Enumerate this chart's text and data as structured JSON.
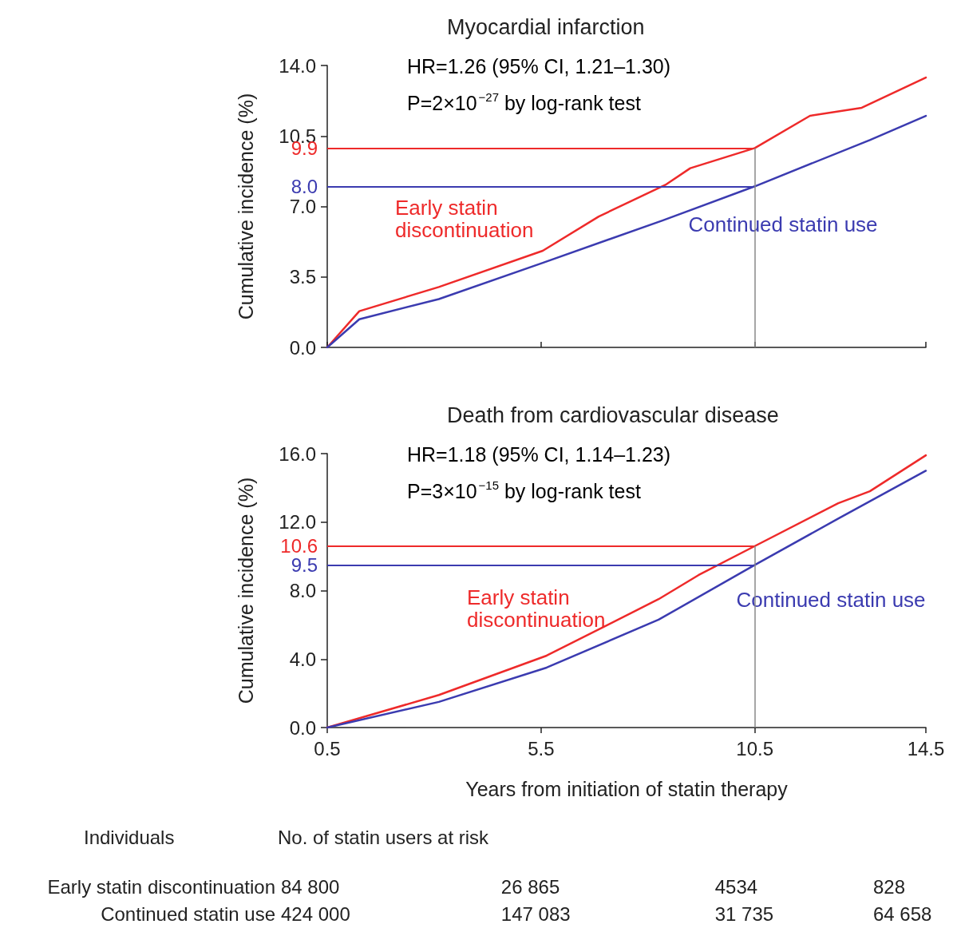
{
  "chart_data": [
    {
      "type": "line",
      "title": "Myocardial infarction",
      "ylabel": "Cumulative incidence (%)",
      "xlim": [
        0.5,
        14.5
      ],
      "xticks": [
        0.5,
        5.5,
        10.5,
        14.5
      ],
      "ylim": [
        0,
        14
      ],
      "yticks": [
        {
          "value": 0,
          "label": "0.0"
        },
        {
          "value": 3.5,
          "label": "3.5"
        },
        {
          "value": 7,
          "label": "7.0"
        },
        {
          "value": 10.5,
          "label": "10.5"
        },
        {
          "value": 14,
          "label": "14.0"
        }
      ],
      "tick_labels": "y",
      "grid": false,
      "legend": false,
      "marker": "none",
      "line_style": "solid",
      "series": [
        {
          "name": "Early statin discontinuation",
          "color": "#ee2a2a",
          "x": [
            0.5,
            1.25,
            3.11,
            5.54,
            6.85,
            8.43,
            8.99,
            10.5,
            11.79,
            13.0,
            14.5
          ],
          "values": [
            0,
            1.8,
            3.0,
            4.8,
            6.5,
            8.1,
            8.9,
            9.9,
            11.5,
            11.9,
            13.4
          ]
        },
        {
          "name": "Continued statin use",
          "color": "#3b3bb0",
          "x": [
            0.5,
            1.25,
            3.11,
            5.54,
            8.34,
            10.5,
            13.19,
            14.5
          ],
          "values": [
            0,
            1.4,
            2.4,
            4.2,
            6.3,
            8.0,
            10.3,
            11.5
          ]
        }
      ],
      "ref_lines": [
        {
          "axis": "y",
          "value": 9.9,
          "label": "9.9",
          "color": "#ee2a2a"
        },
        {
          "axis": "y",
          "value": 8.0,
          "label": "8.0",
          "color": "#3b3bb0"
        },
        {
          "axis": "x",
          "value": 10.5,
          "color": "#888888"
        }
      ],
      "annotations": [
        "HR=1.26 (95% CI, 1.21–1.30)",
        "P=2×10$^{−27}$ by log-rank test"
      ]
    },
    {
      "type": "line",
      "title": "Death from cardiovascular disease",
      "ylabel": "Cumulative incidence (%)",
      "xlabel": "Years from initiation of statin therapy",
      "xlim": [
        0.5,
        14.5
      ],
      "xticks": [
        0.5,
        5.5,
        10.5,
        14.5
      ],
      "ylim": [
        0,
        16
      ],
      "yticks": [
        {
          "value": 0,
          "label": "0.0"
        },
        {
          "value": 4,
          "label": "4.0"
        },
        {
          "value": 8,
          "label": "8.0"
        },
        {
          "value": 12,
          "label": "12.0"
        },
        {
          "value": 16,
          "label": "16.0"
        }
      ],
      "grid": false,
      "legend": false,
      "marker": "none",
      "line_style": "solid",
      "series": [
        {
          "name": "Early statin discontinuation",
          "color": "#ee2a2a",
          "x": [
            0.5,
            3.11,
            5.63,
            8.25,
            9.18,
            10.5,
            12.45,
            13.19,
            14.5
          ],
          "values": [
            0,
            1.9,
            4.2,
            7.5,
            8.9,
            10.6,
            13.1,
            13.8,
            15.9
          ]
        },
        {
          "name": "Continued statin use",
          "color": "#3b3bb0",
          "x": [
            0.5,
            3.11,
            5.63,
            8.25,
            10.5,
            12.45,
            14.5
          ],
          "values": [
            0,
            1.5,
            3.5,
            6.3,
            9.5,
            12.2,
            15.0
          ]
        }
      ],
      "ref_lines": [
        {
          "axis": "y",
          "value": 10.6,
          "label": "10.6",
          "color": "#ee2a2a"
        },
        {
          "axis": "y",
          "value": 9.5,
          "label": "9.5",
          "color": "#3b3bb0"
        },
        {
          "axis": "x",
          "value": 10.5,
          "color": "#888888"
        }
      ],
      "annotations": [
        "HR=1.18 (95% CI, 1.14–1.23)",
        "P=3×10$^{−15}$ by log-rank test",
        "Individuals",
        "No. of statin users at risk",
        "Early statin discontinuation",
        "84 800",
        "26 865",
        "4534",
        "828",
        "Continued statin use",
        "424 000",
        "147 083",
        "31 735",
        "64 658"
      ]
    }
  ]
}
